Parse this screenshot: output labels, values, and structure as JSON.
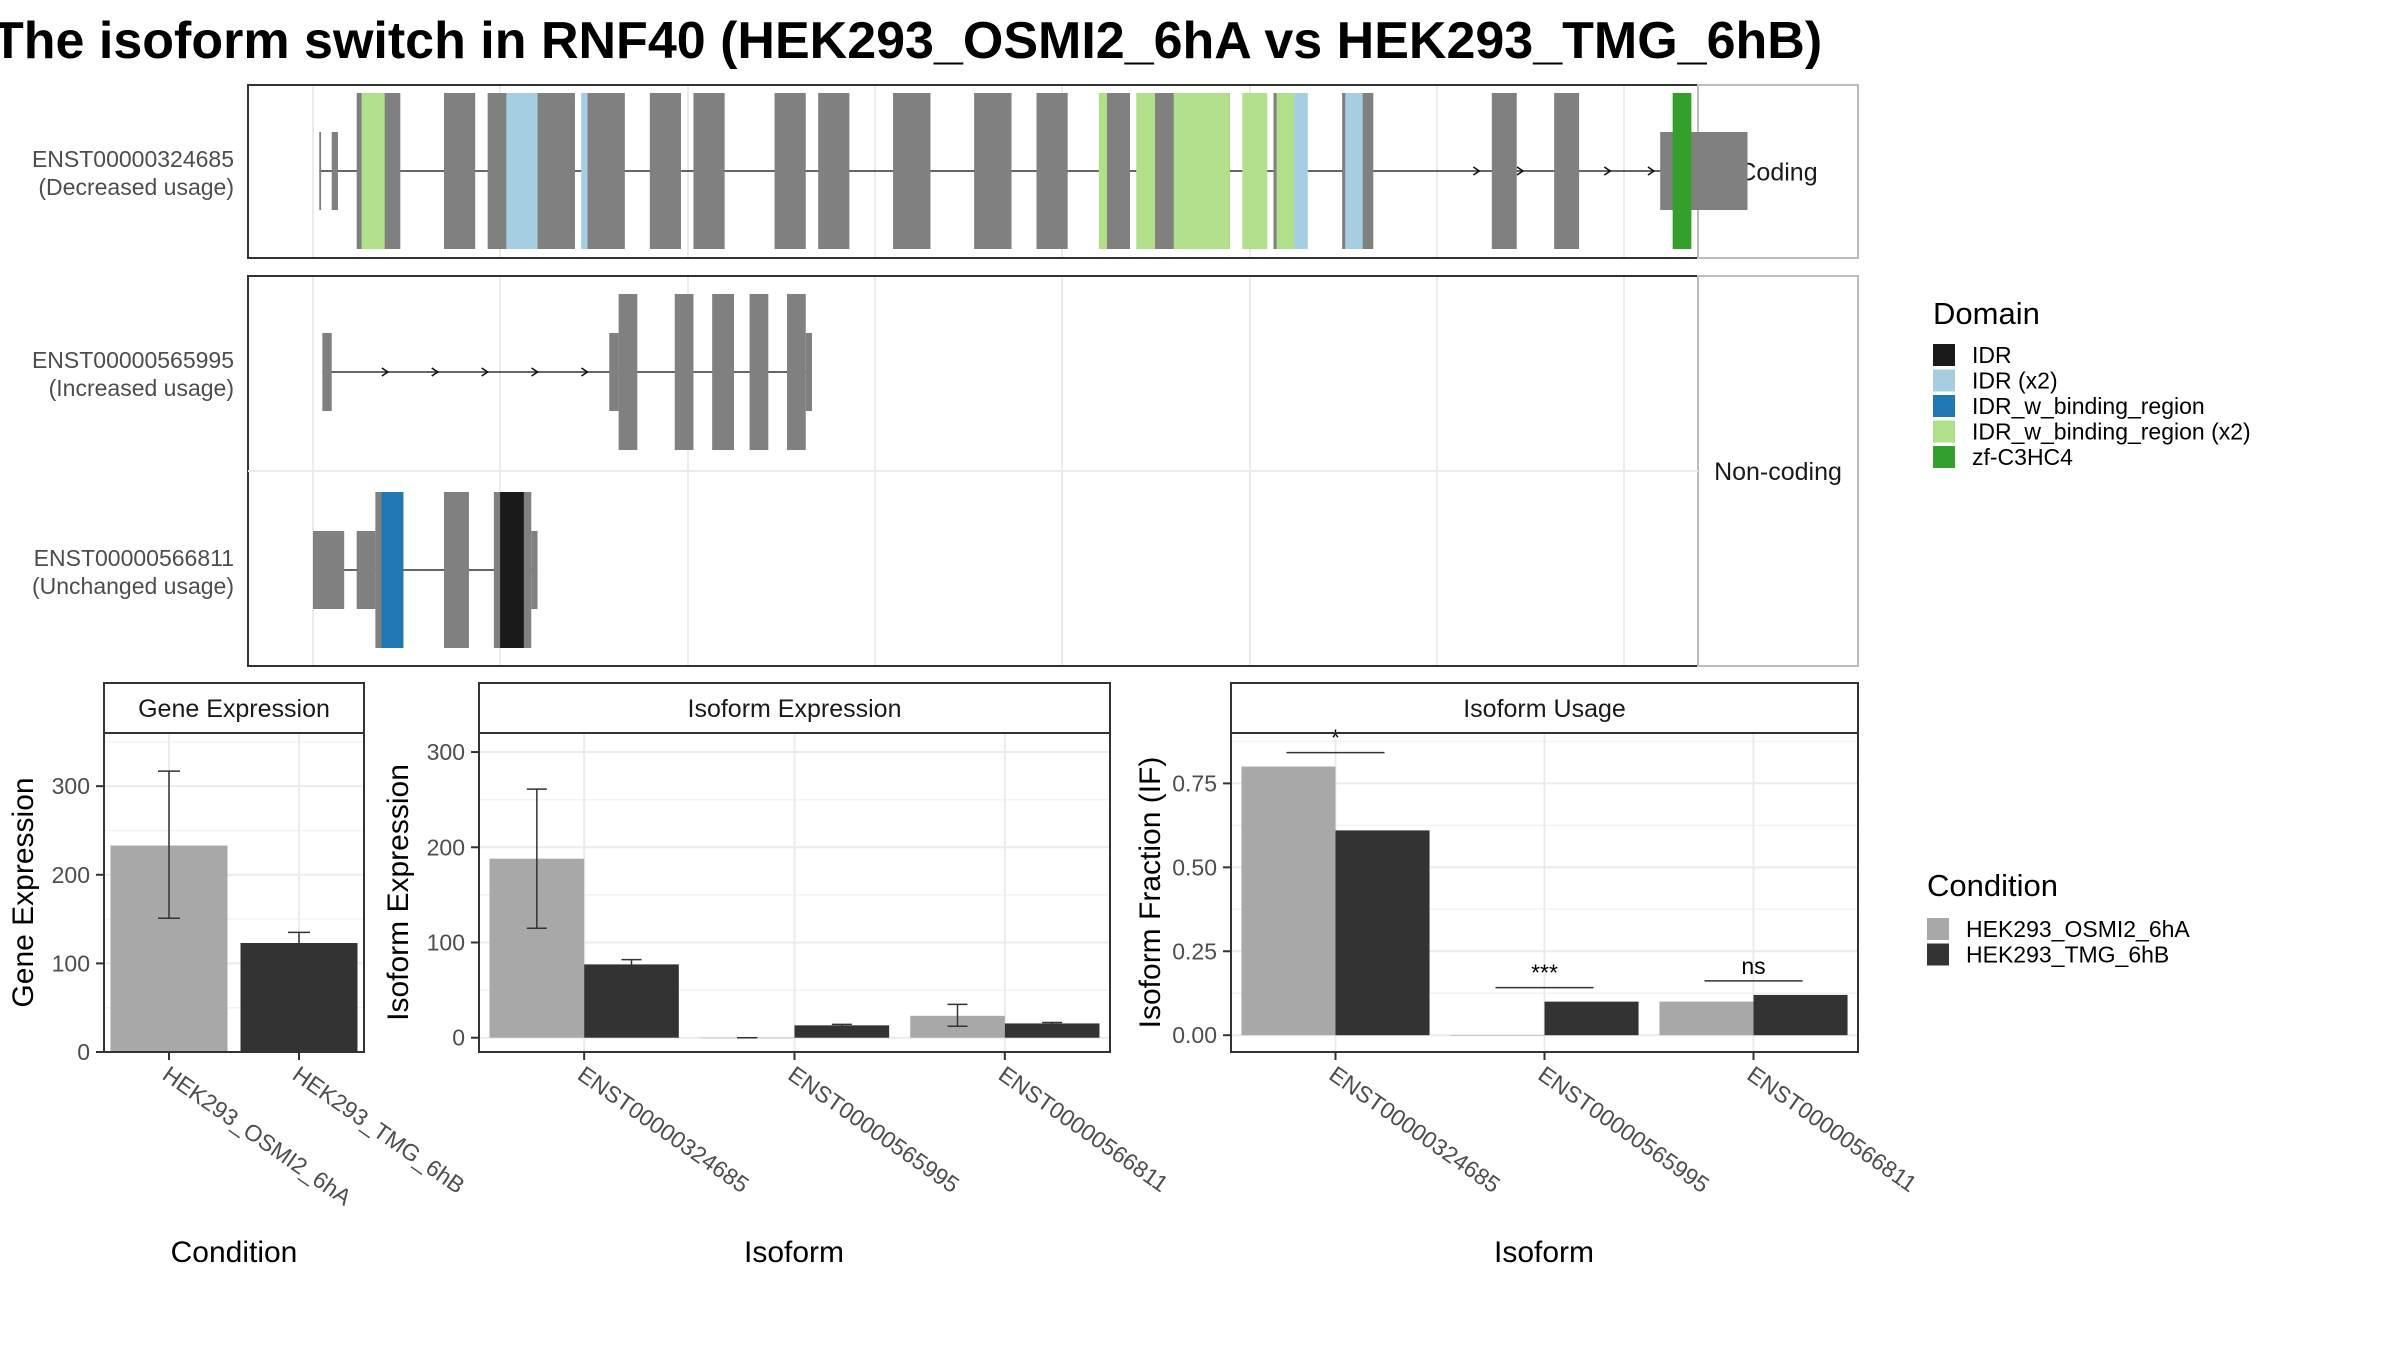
{
  "title": "The isoform switch in RNF40 (HEK293_OSMI2_6hA vs HEK293_TMG_6hB)",
  "colors": {
    "cond_a": "#a8a8a8",
    "cond_b": "#333333",
    "exon": "#808080",
    "grid": "#ebebeb",
    "domains": {
      "IDR": "#1a1a1a",
      "IDR (x2)": "#a6cee3",
      "IDR_w_binding_region": "#1f78b4",
      "IDR_w_binding_region (x2)": "#b2df8a",
      "zf-C3HC4": "#33a02c"
    }
  },
  "structure": {
    "facets": [
      "Coding",
      "Non-coding"
    ],
    "transcripts": [
      {
        "id": "ENST00000324685",
        "usage": "(Decreased usage)",
        "facet": "Coding",
        "exons": [
          [
            1,
            1.3,
            "s"
          ],
          [
            3,
            4,
            "s"
          ],
          [
            7,
            14,
            "l"
          ],
          [
            21,
            26,
            "l"
          ],
          [
            28,
            33,
            "l"
          ],
          [
            36,
            42,
            "l"
          ],
          [
            44,
            50,
            "l"
          ],
          [
            54,
            59,
            "l"
          ],
          [
            61,
            66,
            "l"
          ],
          [
            74,
            79,
            "l"
          ],
          [
            81,
            86,
            "l"
          ],
          [
            93,
            99,
            "l"
          ],
          [
            106,
            112,
            "l"
          ],
          [
            116,
            121,
            "l"
          ],
          [
            127,
            131,
            "l"
          ],
          [
            135,
            140,
            "l"
          ],
          [
            143,
            147,
            "l"
          ],
          [
            154,
            158,
            "l"
          ],
          [
            165,
            170,
            "l"
          ],
          [
            189,
            193,
            "l"
          ],
          [
            199,
            203,
            "l"
          ],
          [
            216,
            220,
            "m"
          ],
          [
            220,
            230,
            "b"
          ]
        ],
        "domains": [
          [
            7.8,
            11.5,
            "IDR_w_binding_region (x2)"
          ],
          [
            31,
            36,
            "IDR (x2)"
          ],
          [
            43,
            44,
            "IDR (x2)"
          ],
          [
            126,
            127.3,
            "IDR_w_binding_region (x2)"
          ],
          [
            132,
            135,
            "IDR_w_binding_region (x2)"
          ],
          [
            138,
            147,
            "IDR_w_binding_region (x2)"
          ],
          [
            149,
            153,
            "IDR_w_binding_region (x2)"
          ],
          [
            154.5,
            158,
            "IDR_w_binding_region (x2)"
          ],
          [
            165.5,
            168.3,
            "IDR (x2)"
          ],
          [
            157.3,
            159.5,
            "IDR (x2)"
          ],
          [
            218,
            221,
            "zf-C3HC4"
          ]
        ],
        "arrows": [
          187,
          194,
          208,
          215
        ]
      },
      {
        "id": "ENST00000565995",
        "usage": "(Increased usage)",
        "facet": "Non-coding",
        "exons": [
          [
            1.5,
            3,
            "s"
          ],
          [
            47.5,
            49,
            "s"
          ],
          [
            49,
            52,
            "l"
          ],
          [
            58,
            61,
            "l"
          ],
          [
            64,
            67.5,
            "l"
          ],
          [
            70,
            73,
            "l"
          ],
          [
            76,
            79,
            "l"
          ],
          [
            79,
            80,
            "s"
          ]
        ],
        "domains": [],
        "arrows": [
          12,
          20,
          28,
          36,
          44
        ]
      },
      {
        "id": "ENST00000566811",
        "usage": "(Unchanged usage)",
        "facet": "Non-coding",
        "exons": [
          [
            0,
            5,
            "m"
          ],
          [
            7,
            10,
            "m"
          ],
          [
            10,
            14,
            "l"
          ],
          [
            21,
            25,
            "l"
          ],
          [
            29,
            35,
            "l"
          ],
          [
            35,
            36,
            "m"
          ]
        ],
        "domains": [
          [
            11,
            14.5,
            "IDR_w_binding_region"
          ],
          [
            30,
            33.8,
            "IDR"
          ]
        ],
        "arrows": []
      }
    ]
  },
  "legend_domain": {
    "title": "Domain",
    "items": [
      "IDR",
      "IDR (x2)",
      "IDR_w_binding_region",
      "IDR_w_binding_region (x2)",
      "zf-C3HC4"
    ]
  },
  "legend_condition": {
    "title": "Condition",
    "items": [
      "HEK293_OSMI2_6hA",
      "HEK293_TMG_6hB"
    ]
  },
  "chart_data": [
    {
      "type": "bar",
      "title": "Gene Expression",
      "xlabel": "Condition",
      "ylabel": "Gene Expression",
      "categories": [
        "HEK293_OSMI2_6hA",
        "HEK293_TMG_6hB"
      ],
      "values": [
        233,
        123
      ],
      "error_bars": [
        [
          151,
          317
        ],
        [
          112,
          135
        ]
      ],
      "ylim": [
        0,
        360
      ],
      "yticks": [
        0,
        100,
        200,
        300
      ]
    },
    {
      "type": "bar",
      "title": "Isoform Expression",
      "xlabel": "Isoform",
      "ylabel": "Isoform Expression",
      "categories": [
        "ENST00000324685",
        "ENST00000565995",
        "ENST00000566811"
      ],
      "series": [
        {
          "name": "HEK293_OSMI2_6hA",
          "values": [
            188,
            0,
            23
          ],
          "error_bars": [
            [
              115,
              261
            ],
            [
              0,
              0
            ],
            [
              12,
              35
            ]
          ]
        },
        {
          "name": "HEK293_TMG_6hB",
          "values": [
            77,
            13,
            15
          ],
          "error_bars": [
            [
              72,
              82
            ],
            [
              12,
              14
            ],
            [
              13,
              16
            ]
          ]
        }
      ],
      "ylim": [
        -15,
        320
      ],
      "yticks": [
        0,
        100,
        200,
        300
      ]
    },
    {
      "type": "bar",
      "title": "Isoform Usage",
      "xlabel": "Isoform",
      "ylabel": "Isoform Fraction (IF)",
      "categories": [
        "ENST00000324685",
        "ENST00000565995",
        "ENST00000566811"
      ],
      "series": [
        {
          "name": "HEK293_OSMI2_6hA",
          "values": [
            0.8,
            0.0,
            0.1
          ]
        },
        {
          "name": "HEK293_TMG_6hB",
          "values": [
            0.61,
            0.1,
            0.12
          ]
        }
      ],
      "significance": [
        "*",
        "***",
        "ns"
      ],
      "ylim": [
        -0.05,
        0.9
      ],
      "yticks": [
        0.0,
        0.25,
        0.5,
        0.75
      ],
      "ytick_labels": [
        "0.00",
        "0.25",
        "0.50",
        "0.75"
      ]
    }
  ]
}
